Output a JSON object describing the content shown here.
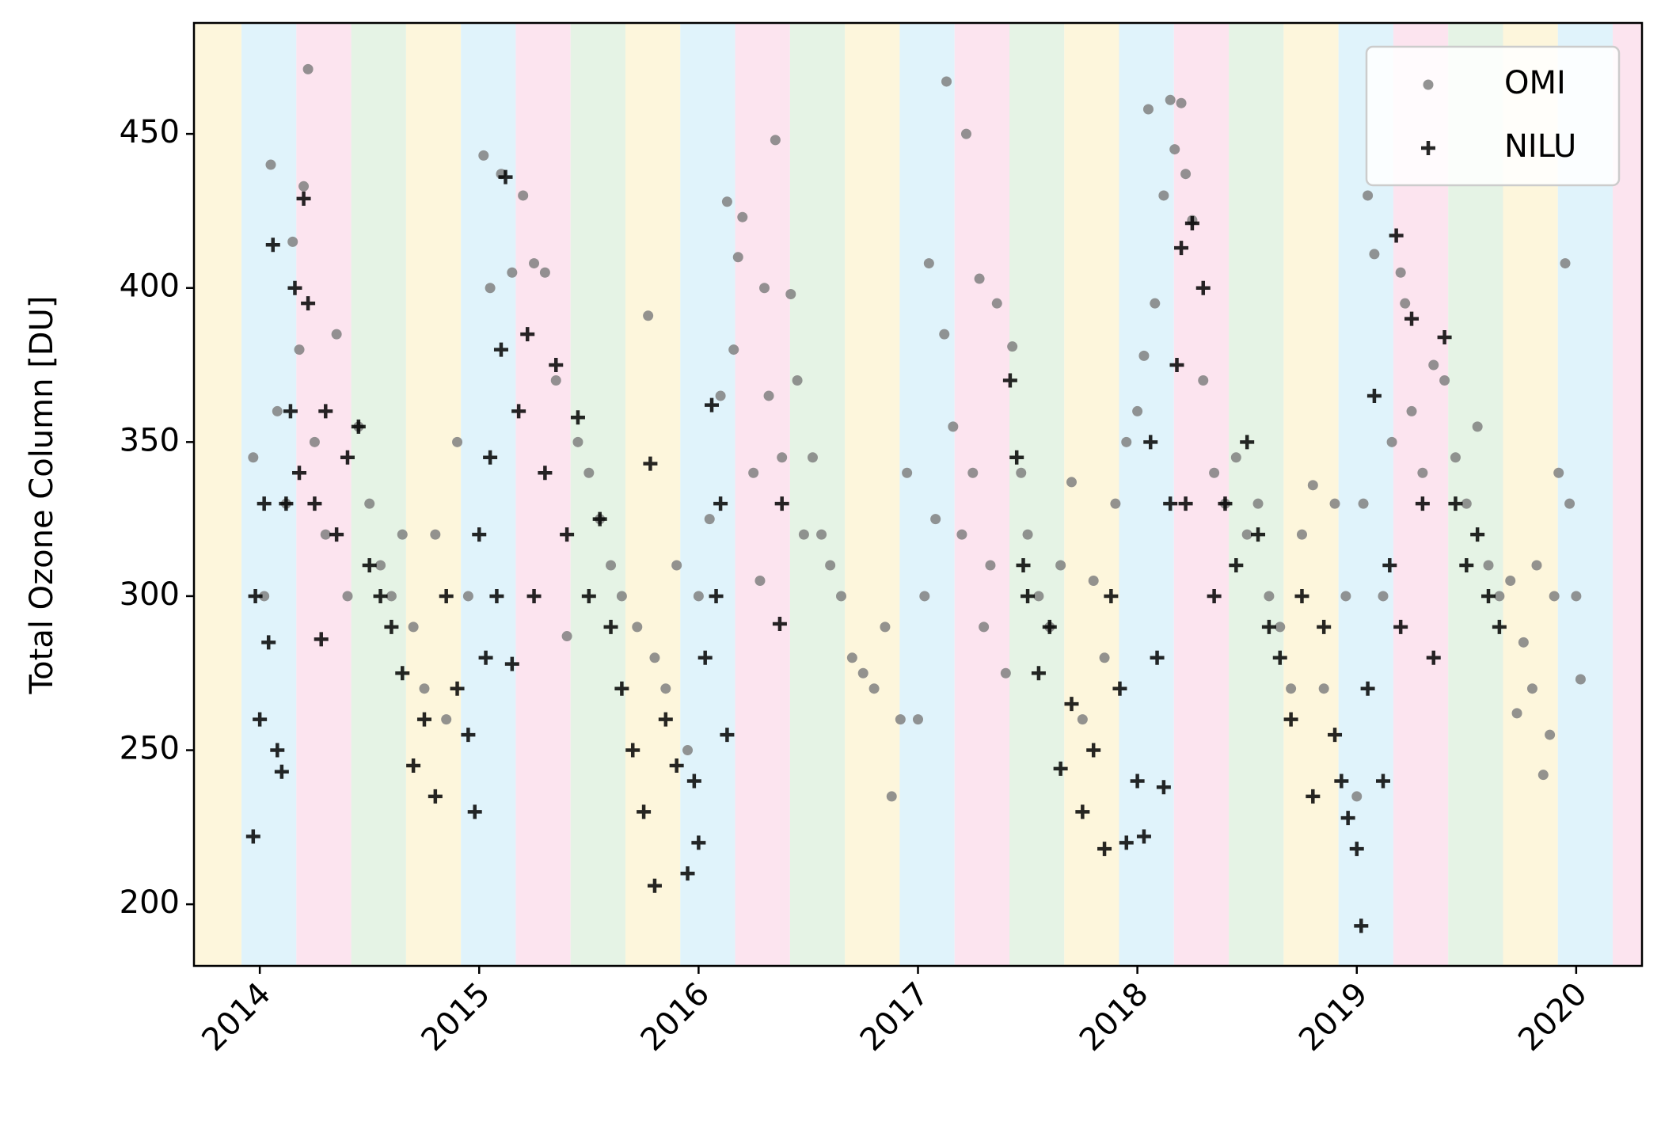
{
  "chart_data": {
    "type": "scatter",
    "y_label": "Total Ozone Column  [DU]",
    "xlim": [
      2013.7,
      2020.3
    ],
    "xticks": [
      2014,
      2015,
      2016,
      2017,
      2018,
      2019,
      2020
    ],
    "ylim": [
      180,
      486
    ],
    "yticks": [
      200,
      250,
      300,
      350,
      400,
      450
    ],
    "legend": "upper right",
    "series": [
      {
        "name": "OMI",
        "color": "#808080",
        "marker": "circle",
        "x": [
          2013.97,
          2014.02,
          2014.05,
          2014.08,
          2014.12,
          2014.15,
          2014.18,
          2014.2,
          2014.22,
          2014.25,
          2014.3,
          2014.35,
          2014.4,
          2014.45,
          2014.5,
          2014.55,
          2014.6,
          2014.65,
          2014.7,
          2014.75,
          2014.8,
          2014.85,
          2014.9,
          2014.95,
          2015.02,
          2015.05,
          2015.1,
          2015.15,
          2015.2,
          2015.25,
          2015.3,
          2015.35,
          2015.4,
          2015.45,
          2015.5,
          2015.55,
          2015.6,
          2015.65,
          2015.72,
          2015.77,
          2015.8,
          2015.85,
          2015.9,
          2015.95,
          2016.0,
          2016.05,
          2016.1,
          2016.13,
          2016.16,
          2016.18,
          2016.2,
          2016.25,
          2016.28,
          2016.3,
          2016.32,
          2016.35,
          2016.38,
          2016.42,
          2016.45,
          2016.48,
          2016.52,
          2016.56,
          2016.6,
          2016.65,
          2016.7,
          2016.75,
          2016.8,
          2016.85,
          2016.88,
          2016.92,
          2016.95,
          2017.0,
          2017.03,
          2017.05,
          2017.08,
          2017.12,
          2017.13,
          2017.16,
          2017.2,
          2017.22,
          2017.25,
          2017.28,
          2017.3,
          2017.33,
          2017.36,
          2017.4,
          2017.43,
          2017.47,
          2017.5,
          2017.55,
          2017.6,
          2017.65,
          2017.7,
          2017.75,
          2017.8,
          2017.85,
          2017.9,
          2017.95,
          2018.0,
          2018.03,
          2018.05,
          2018.08,
          2018.12,
          2018.15,
          2018.17,
          2018.2,
          2018.22,
          2018.25,
          2018.3,
          2018.35,
          2018.4,
          2018.45,
          2018.5,
          2018.55,
          2018.6,
          2018.65,
          2018.7,
          2018.75,
          2018.8,
          2018.85,
          2018.9,
          2018.95,
          2019.0,
          2019.03,
          2019.05,
          2019.08,
          2019.12,
          2019.16,
          2019.2,
          2019.22,
          2019.25,
          2019.3,
          2019.35,
          2019.4,
          2019.45,
          2019.5,
          2019.55,
          2019.6,
          2019.65,
          2019.7,
          2019.73,
          2019.76,
          2019.8,
          2019.82,
          2019.85,
          2019.88,
          2019.9,
          2019.92,
          2019.95,
          2019.97,
          2020.0,
          2020.02
        ],
        "values": [
          345,
          300,
          440,
          360,
          330,
          415,
          380,
          433,
          471,
          350,
          320,
          385,
          300,
          355,
          330,
          310,
          300,
          320,
          290,
          270,
          320,
          260,
          350,
          300,
          443,
          400,
          437,
          405,
          430,
          408,
          405,
          370,
          287,
          350,
          340,
          325,
          310,
          300,
          290,
          391,
          280,
          270,
          310,
          250,
          300,
          325,
          365,
          428,
          380,
          410,
          423,
          340,
          305,
          400,
          365,
          448,
          345,
          398,
          370,
          320,
          345,
          320,
          310,
          300,
          280,
          275,
          270,
          290,
          235,
          260,
          340,
          260,
          300,
          408,
          325,
          385,
          467,
          355,
          320,
          450,
          340,
          403,
          290,
          310,
          395,
          275,
          381,
          340,
          320,
          300,
          290,
          310,
          337,
          260,
          305,
          280,
          330,
          350,
          360,
          378,
          458,
          395,
          430,
          461,
          445,
          460,
          437,
          422,
          370,
          340,
          330,
          345,
          320,
          330,
          300,
          290,
          270,
          320,
          336,
          270,
          330,
          300,
          235,
          330,
          430,
          411,
          300,
          350,
          405,
          395,
          360,
          340,
          375,
          370,
          345,
          330,
          355,
          310,
          300,
          305,
          262,
          285,
          270,
          310,
          242,
          255,
          300,
          340,
          408,
          330,
          300,
          273
        ]
      },
      {
        "name": "NILU",
        "color": "#000000",
        "marker": "plus",
        "x": [
          2013.97,
          2013.98,
          2014.0,
          2014.02,
          2014.04,
          2014.06,
          2014.08,
          2014.1,
          2014.12,
          2014.14,
          2014.16,
          2014.18,
          2014.2,
          2014.22,
          2014.25,
          2014.28,
          2014.3,
          2014.35,
          2014.4,
          2014.45,
          2014.5,
          2014.55,
          2014.6,
          2014.65,
          2014.7,
          2014.75,
          2014.8,
          2014.85,
          2014.9,
          2014.95,
          2014.98,
          2015.0,
          2015.03,
          2015.05,
          2015.08,
          2015.1,
          2015.12,
          2015.15,
          2015.18,
          2015.22,
          2015.25,
          2015.3,
          2015.35,
          2015.4,
          2015.45,
          2015.5,
          2015.55,
          2015.6,
          2015.65,
          2015.7,
          2015.75,
          2015.78,
          2015.8,
          2015.85,
          2015.9,
          2015.95,
          2015.98,
          2016.0,
          2016.03,
          2016.06,
          2016.08,
          2016.1,
          2016.13,
          2016.37,
          2016.38,
          2017.42,
          2017.45,
          2017.48,
          2017.5,
          2017.55,
          2017.6,
          2017.65,
          2017.7,
          2017.75,
          2017.8,
          2017.85,
          2017.88,
          2017.92,
          2017.95,
          2018.0,
          2018.03,
          2018.06,
          2018.09,
          2018.12,
          2018.15,
          2018.18,
          2018.2,
          2018.22,
          2018.25,
          2018.3,
          2018.35,
          2018.4,
          2018.45,
          2018.5,
          2018.55,
          2018.6,
          2018.65,
          2018.7,
          2018.75,
          2018.8,
          2018.85,
          2018.9,
          2018.93,
          2018.96,
          2019.0,
          2019.02,
          2019.05,
          2019.08,
          2019.12,
          2019.15,
          2019.18,
          2019.2,
          2019.25,
          2019.3,
          2019.35,
          2019.4,
          2019.45,
          2019.5,
          2019.55,
          2019.6,
          2019.65
        ],
        "values": [
          222,
          300,
          260,
          330,
          285,
          414,
          250,
          243,
          330,
          360,
          400,
          340,
          429,
          395,
          330,
          286,
          360,
          320,
          345,
          355,
          310,
          300,
          290,
          275,
          245,
          260,
          235,
          300,
          270,
          255,
          230,
          320,
          280,
          345,
          300,
          380,
          436,
          278,
          360,
          385,
          300,
          340,
          375,
          320,
          358,
          300,
          325,
          290,
          270,
          250,
          230,
          343,
          206,
          260,
          245,
          210,
          240,
          220,
          280,
          362,
          300,
          330,
          255,
          291,
          330,
          370,
          345,
          310,
          300,
          275,
          290,
          244,
          265,
          230,
          250,
          218,
          300,
          270,
          220,
          240,
          222,
          350,
          280,
          238,
          330,
          375,
          413,
          330,
          421,
          400,
          300,
          330,
          310,
          350,
          320,
          290,
          280,
          260,
          300,
          235,
          290,
          255,
          240,
          228,
          218,
          193,
          270,
          365,
          240,
          310,
          417,
          290,
          390,
          330,
          280,
          384,
          330,
          310,
          320,
          300,
          290
        ]
      }
    ]
  }
}
